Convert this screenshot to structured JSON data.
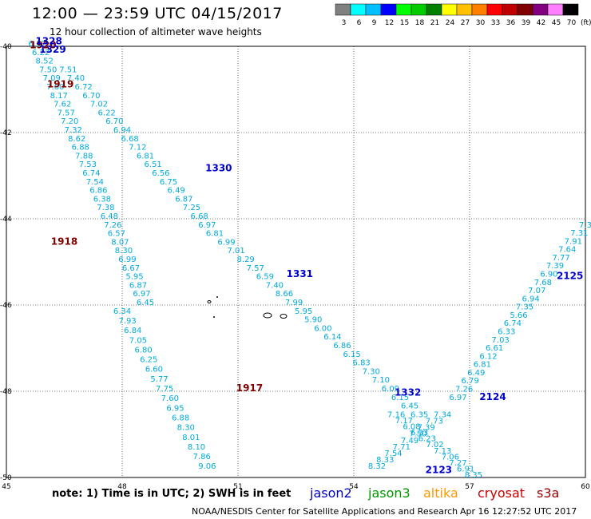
{
  "title": "12:00 — 23:59 UTC 04/15/2017",
  "subtitle": "12 hour collection of altimeter wave heights",
  "note": "note: 1) Time is in UTC; 2) SWH is in feet",
  "satellites": [
    {
      "name": "jason2",
      "color": "#0000cc"
    },
    {
      "name": "jason3",
      "color": "#009900"
    },
    {
      "name": "altika",
      "color": "#ff9900"
    },
    {
      "name": "cryosat",
      "color": "#cc0000"
    },
    {
      "name": "s3a",
      "color": "#990000"
    }
  ],
  "credit": "NOAA/NESDIS Center for Satellite Applications and Research",
  "credit_time": "Apr 16 12:27:52 UTC 2017",
  "colorbar": {
    "labels": [
      "3",
      "6",
      "9",
      "12",
      "15",
      "18",
      "21",
      "24",
      "27",
      "30",
      "33",
      "36",
      "39",
      "42",
      "45",
      "70"
    ],
    "unit": "(ft)",
    "colors": [
      "#808080",
      "#00ffff",
      "#00bfff",
      "#0000ff",
      "#00ff00",
      "#00cc00",
      "#008000",
      "#ffff00",
      "#ffc000",
      "#ff8000",
      "#ff0000",
      "#c00000",
      "#800000",
      "#800080",
      "#ff80ff",
      "#000000"
    ]
  },
  "chart_data": {
    "type": "scatter",
    "xlim": [
      45,
      60
    ],
    "ylim": [
      -50,
      -40
    ],
    "xticks": [
      "45",
      "48",
      "51",
      "54",
      "57",
      "60"
    ],
    "yticks": [
      "-40",
      "-42",
      "-44",
      "-46",
      "-48",
      "-50"
    ],
    "grid": true,
    "passes": [
      {
        "time": "1917",
        "color": "#800000",
        "label_lon": 51.3,
        "label_lat": -48.0
      },
      {
        "time": "1918",
        "color": "#800000",
        "label_lon": 46.5,
        "label_lat": -44.6
      },
      {
        "time": "1919",
        "color": "#800000",
        "label_lon": 46.4,
        "label_lat": -40.95
      },
      {
        "time": "1920",
        "color": "#800000",
        "label_lon": 45.95,
        "label_lat": -40.05
      },
      {
        "time": "1328",
        "color": "#0000cc",
        "label_lon": 46.1,
        "label_lat": -39.95
      },
      {
        "time": "1329",
        "color": "#0000cc",
        "label_lon": 46.2,
        "label_lat": -40.15
      },
      {
        "time": "1330",
        "color": "#0000cc",
        "label_lon": 50.5,
        "label_lat": -42.9
      },
      {
        "time": "1331",
        "color": "#0000cc",
        "label_lon": 52.6,
        "label_lat": -45.35
      },
      {
        "time": "1332",
        "color": "#0000cc",
        "label_lon": 55.4,
        "label_lat": -48.1
      },
      {
        "time": "2123",
        "color": "#0000cc",
        "label_lon": 56.2,
        "label_lat": -49.9
      },
      {
        "time": "2124",
        "color": "#0000cc",
        "label_lon": 57.6,
        "label_lat": -48.2
      },
      {
        "time": "2125",
        "color": "#0000cc",
        "label_lon": 59.6,
        "label_lat": -45.4
      }
    ],
    "tracks": [
      {
        "name": "track-A",
        "color": "#00aadd",
        "start": [
          45.8,
          -40.0
        ],
        "end": [
          48.6,
          -46.0
        ],
        "values": [
          "6.12",
          "6.22",
          "8.52",
          "7.50",
          "7.09",
          "7.60",
          "8.17",
          "7.62",
          "7.57",
          "7.20",
          "7.32",
          "8.62",
          "6.88",
          "7.88",
          "7.53",
          "6.74",
          "7.54",
          "6.86",
          "6.38",
          "7.38",
          "6.48",
          "7.26",
          "6.57",
          "8.07",
          "8.30",
          "6.99",
          "6.67",
          "5.95",
          "6.87",
          "6.97",
          "6.45"
        ]
      },
      {
        "name": "track-B",
        "color": "#00aadd",
        "start": [
          48.0,
          -46.2
        ],
        "end": [
          50.2,
          -49.8
        ],
        "values": [
          "6.34",
          "7.93",
          "6.84",
          "7.05",
          "6.80",
          "6.25",
          "6.60",
          "5.77",
          "7.75",
          "7.60",
          "6.95",
          "6.88",
          "8.30",
          "8.01",
          "8.10",
          "7.86",
          "9.06"
        ]
      },
      {
        "name": "track-C",
        "color": "#00aadd",
        "start": [
          46.6,
          -40.6
        ],
        "end": [
          50.4,
          -44.4
        ],
        "values": [
          "7.51",
          "7.40",
          "6.72",
          "6.70",
          "7.02",
          "6.22",
          "6.70",
          "6.94",
          "6.68",
          "7.12",
          "6.81",
          "6.51",
          "6.56",
          "6.75",
          "6.49",
          "6.87",
          "7.25",
          "6.68",
          "6.97",
          "6.81"
        ]
      },
      {
        "name": "track-D",
        "color": "#00aadd",
        "start": [
          50.7,
          -44.6
        ],
        "end": [
          55.7,
          -48.6
        ],
        "values": [
          "6.99",
          "7.01",
          "8.29",
          "7.57",
          "6.59",
          "7.40",
          "8.66",
          "7.99",
          "5.95",
          "5.90",
          "6.00",
          "6.14",
          "6.86",
          "6.15",
          "6.83",
          "7.30",
          "7.10",
          "6.09",
          "6.15",
          "6.45",
          "6.35"
        ]
      },
      {
        "name": "track-E",
        "color": "#00aadd",
        "start": [
          55.1,
          -48.6
        ],
        "end": [
          57.1,
          -50.0
        ],
        "values": [
          "7.16",
          "7.17",
          "6.08",
          "6.33",
          "6.23",
          "7.02",
          "7.13",
          "7.06",
          "7.27",
          "6.91",
          "8.35"
        ]
      },
      {
        "name": "track-F",
        "color": "#00aadd",
        "start": [
          56.3,
          -48.6
        ],
        "end": [
          54.6,
          -49.8
        ],
        "values": [
          "7.34",
          "7.73",
          "7.39",
          "7.50",
          "7.49",
          "7.71",
          "7.54",
          "8.33",
          "8.32"
        ]
      },
      {
        "name": "track-G",
        "color": "#00aadd",
        "start": [
          56.7,
          -48.2
        ],
        "end": [
          60.0,
          -44.2
        ],
        "values": [
          "6.97",
          "7.26",
          "6.79",
          "6.49",
          "6.81",
          "6.12",
          "6.61",
          "7.03",
          "6.33",
          "6.74",
          "5.66",
          "7.35",
          "6.94",
          "7.07",
          "7.68",
          "6.90",
          "7.39",
          "7.77",
          "7.64",
          "7.91",
          "7.31",
          "7.3"
        ]
      }
    ]
  }
}
